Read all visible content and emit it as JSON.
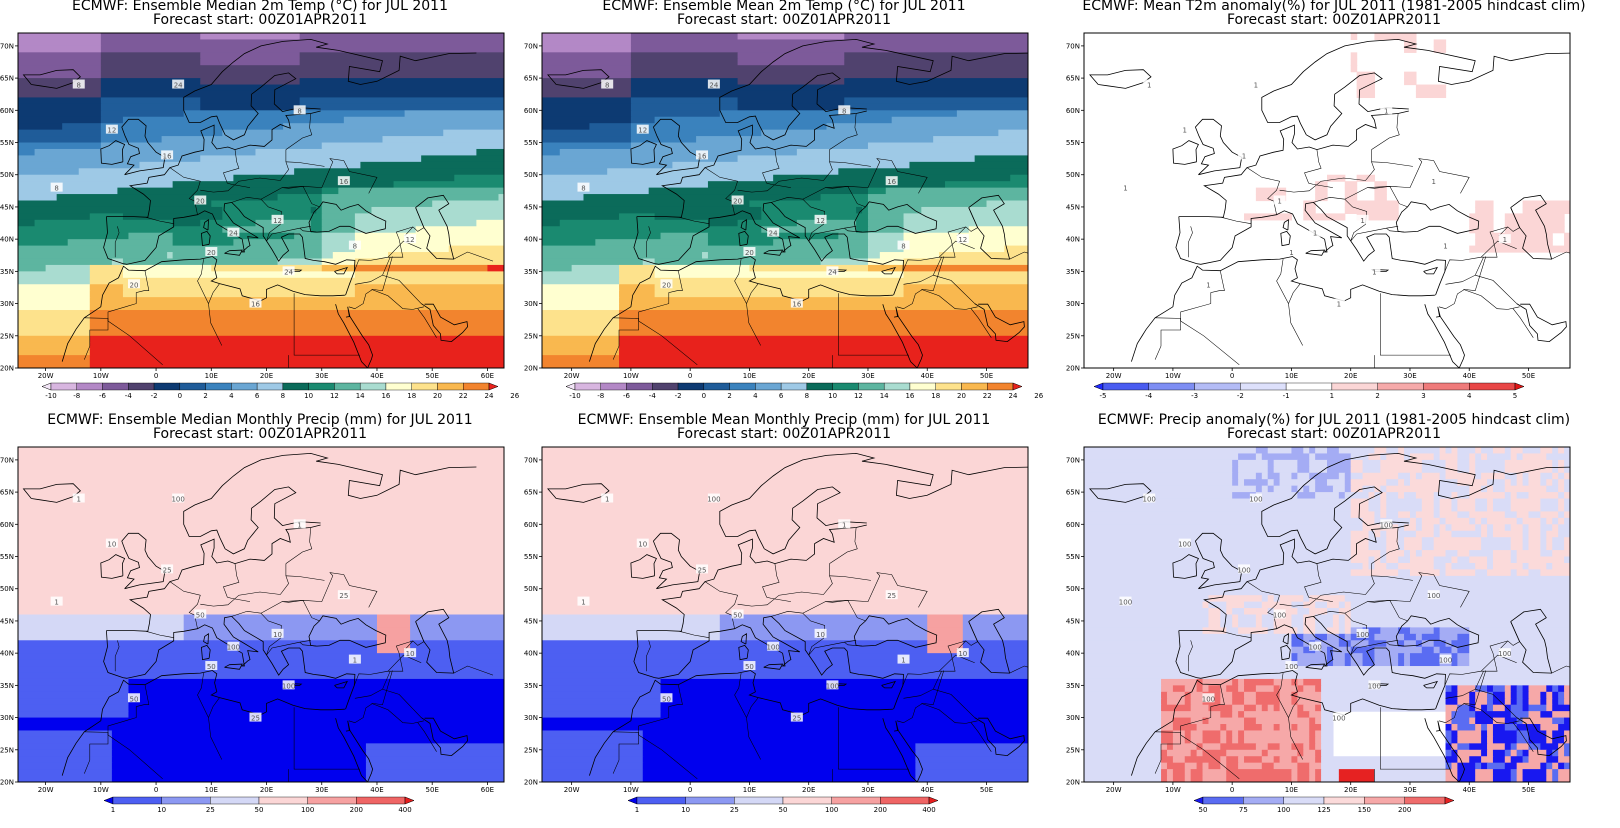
{
  "panels": [
    {
      "id": "median-temp",
      "title": "ECMWF: Ensemble Median 2m Temp (°C) for JUL 2011",
      "subtitle": "Forecast start: 00Z01APR2011",
      "lon_ticks": [
        "20W",
        "10W",
        "0",
        "10E",
        "20E",
        "30E",
        "40E",
        "50E",
        "60E"
      ],
      "lat_ticks": [
        "70N",
        "65N",
        "60N",
        "55N",
        "50N",
        "45N",
        "40N",
        "35N",
        "30N",
        "25N",
        "20N"
      ],
      "colorbar": {
        "labels": [
          "-10",
          "-8",
          "-6",
          "-4",
          "-2",
          "0",
          "2",
          "4",
          "6",
          "8",
          "10",
          "12",
          "14",
          "16",
          "18",
          "20",
          "22",
          "24",
          "26"
        ],
        "colors": [
          "#f3e6f7",
          "#d8b6e0",
          "#b388c6",
          "#7d5a9a",
          "#50426e",
          "#0d3a72",
          "#1f5c99",
          "#3a82bd",
          "#6aa6d3",
          "#9ec9e6",
          "#0b6b5a",
          "#1a8a70",
          "#5db5a0",
          "#a9dcd0",
          "#ffffd0",
          "#fde28c",
          "#f9b84f",
          "#f2842e",
          "#e8221c"
        ]
      },
      "contour_labels": [
        "8",
        "12",
        "16",
        "20",
        "24"
      ],
      "field": "temp"
    },
    {
      "id": "mean-temp",
      "title": "ECMWF: Ensemble Mean 2m Temp (°C) for JUL 2011",
      "subtitle": "Forecast start: 00Z01APR2011",
      "lon_ticks": [
        "20W",
        "10W",
        "0",
        "10E",
        "20E",
        "30E",
        "40E",
        "50E"
      ],
      "lat_ticks": [
        "70N",
        "65N",
        "60N",
        "55N",
        "50N",
        "45N",
        "40N",
        "35N",
        "30N",
        "25N",
        "20N"
      ],
      "colorbar": {
        "labels": [
          "-10",
          "-8",
          "-6",
          "-4",
          "-2",
          "0",
          "2",
          "4",
          "6",
          "8",
          "10",
          "12",
          "14",
          "16",
          "18",
          "20",
          "22",
          "24",
          "26"
        ],
        "colors": [
          "#f3e6f7",
          "#d8b6e0",
          "#b388c6",
          "#7d5a9a",
          "#50426e",
          "#0d3a72",
          "#1f5c99",
          "#3a82bd",
          "#6aa6d3",
          "#9ec9e6",
          "#0b6b5a",
          "#1a8a70",
          "#5db5a0",
          "#a9dcd0",
          "#ffffd0",
          "#fde28c",
          "#f9b84f",
          "#f2842e",
          "#e8221c"
        ]
      },
      "contour_labels": [
        "8",
        "12",
        "16",
        "20",
        "24"
      ],
      "field": "temp"
    },
    {
      "id": "t2m-anomaly",
      "title": "ECMWF: Mean T2m anomaly(%) for JUL 2011 (1981-2005 hindcast clim)",
      "subtitle": "Forecast start: 00Z01APR2011",
      "lon_ticks": [
        "20W",
        "10W",
        "0",
        "10E",
        "20E",
        "30E",
        "40E",
        "50E"
      ],
      "lat_ticks": [
        "70N",
        "65N",
        "60N",
        "55N",
        "50N",
        "45N",
        "40N",
        "35N",
        "30N",
        "25N",
        "20N"
      ],
      "colorbar": {
        "labels": [
          "-5",
          "-4",
          "-3",
          "-2",
          "-1",
          "1",
          "2",
          "3",
          "4",
          "5"
        ],
        "colors": [
          "#1f2bff",
          "#4a5cf0",
          "#7e8ef3",
          "#b4bcf6",
          "#dde0fb",
          "#ffffff",
          "#fbd6d6",
          "#f6aaaa",
          "#ef7b7b",
          "#e84646",
          "#e01515"
        ]
      },
      "contour_labels": [
        "1"
      ],
      "field": "tanom"
    },
    {
      "id": "median-precip",
      "title": "ECMWF: Ensemble Median Monthly Precip (mm) for JUL 2011",
      "subtitle": "Forecast start: 00Z01APR2011",
      "lon_ticks": [
        "20W",
        "10W",
        "0",
        "10E",
        "20E",
        "30E",
        "40E",
        "50E",
        "60E"
      ],
      "lat_ticks": [
        "70N",
        "65N",
        "60N",
        "55N",
        "50N",
        "45N",
        "40N",
        "35N",
        "30N",
        "25N",
        "20N"
      ],
      "colorbar": {
        "labels": [
          "1",
          "10",
          "25",
          "50",
          "100",
          "200",
          "400"
        ],
        "colors": [
          "#0000ee",
          "#4d5ff2",
          "#8c98f2",
          "#d4d8f6",
          "#fbd6d6",
          "#f6a1a1",
          "#ef6565",
          "#e61e1e"
        ]
      },
      "contour_labels": [
        "1",
        "10",
        "25",
        "50",
        "100"
      ],
      "field": "precip"
    },
    {
      "id": "mean-precip",
      "title": "ECMWF: Ensemble Mean Monthly Precip (mm) for JUL 2011",
      "subtitle": "Forecast start: 00Z01APR2011",
      "lon_ticks": [
        "20W",
        "10W",
        "0",
        "10E",
        "20E",
        "30E",
        "40E",
        "50E"
      ],
      "lat_ticks": [
        "70N",
        "65N",
        "60N",
        "55N",
        "50N",
        "45N",
        "40N",
        "35N",
        "30N",
        "25N",
        "20N"
      ],
      "colorbar": {
        "labels": [
          "1",
          "10",
          "25",
          "50",
          "100",
          "200",
          "400"
        ],
        "colors": [
          "#0000ee",
          "#4d5ff2",
          "#8c98f2",
          "#d4d8f6",
          "#fbd6d6",
          "#f6a1a1",
          "#ef6565",
          "#e61e1e"
        ]
      },
      "contour_labels": [
        "1",
        "10",
        "25",
        "50",
        "100"
      ],
      "field": "precip"
    },
    {
      "id": "precip-anomaly",
      "title": "ECMWF: Precip anomaly(%) for JUL 2011 (1981-2005 hindcast clim)",
      "subtitle": "Forecast start: 00Z01APR2011",
      "lon_ticks": [
        "20W",
        "10W",
        "0",
        "10E",
        "20E",
        "30E",
        "40E",
        "50E"
      ],
      "lat_ticks": [
        "70N",
        "65N",
        "60N",
        "55N",
        "50N",
        "45N",
        "40N",
        "35N",
        "30N",
        "25N",
        "20N"
      ],
      "colorbar": {
        "labels": [
          "50",
          "75",
          "100",
          "125",
          "150",
          "200"
        ],
        "colors": [
          "#1818f0",
          "#5a6cf2",
          "#a4acf4",
          "#d9dcf7",
          "#fbdada",
          "#f6a8a8",
          "#ef6c6c",
          "#e62222"
        ]
      },
      "contour_labels": [
        "100"
      ],
      "field": "panom"
    }
  ]
}
